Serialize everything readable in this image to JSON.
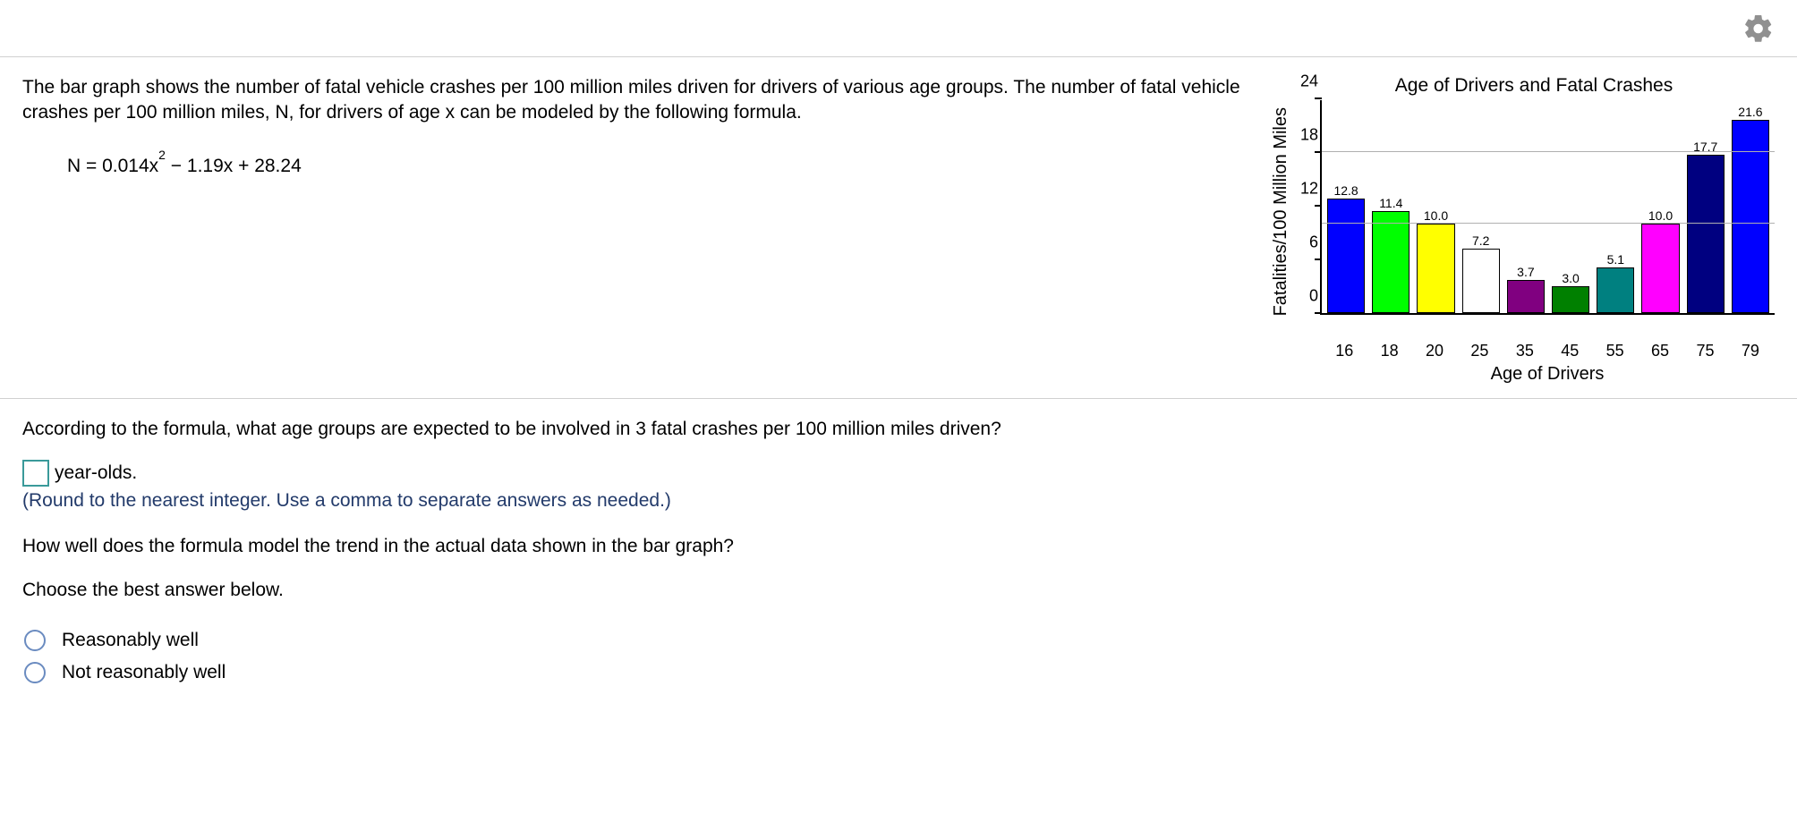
{
  "problem": {
    "intro": "The bar graph shows the number of fatal vehicle crashes per 100 million miles driven for drivers of various age groups. The number of fatal vehicle crashes per 100 million miles, N, for drivers of age x can be modeled by the following formula.",
    "formula_lhs": "N = 0.014x",
    "formula_exp": "2",
    "formula_rhs": " − 1.19x + 28.24"
  },
  "chart": {
    "type": "bar",
    "title": "Age of Drivers and Fatal Crashes",
    "y_label": "Fatalities/100 Million Miles",
    "x_label": "Age of Drivers",
    "ylim": [
      0,
      24
    ],
    "ytick_step": 6,
    "yticks": [
      {
        "v": 0,
        "label": "0"
      },
      {
        "v": 6,
        "label": "6"
      },
      {
        "v": 12,
        "label": "12"
      },
      {
        "v": 18,
        "label": "18"
      },
      {
        "v": 24,
        "label": "24"
      }
    ],
    "gridlines": [
      10.0,
      18.0
    ],
    "categories": [
      "16",
      "18",
      "20",
      "25",
      "35",
      "45",
      "55",
      "65",
      "75",
      "79"
    ],
    "values": [
      12.8,
      11.4,
      10.0,
      7.2,
      3.7,
      3.0,
      5.1,
      10.0,
      17.7,
      21.6
    ],
    "bar_colors": [
      "#0000ff",
      "#00ff00",
      "#ffff00",
      "#ffffff",
      "#800080",
      "#008000",
      "#008080",
      "#ff00ff",
      "#000080",
      "#0000ff"
    ],
    "bar_border": "#000000",
    "grid_color": "#b0b0b0",
    "label_fontsize": 14
  },
  "questions": {
    "q1": "According to the formula, what age groups are expected to be involved in 3 fatal crashes per 100 million miles driven?",
    "ans_suffix": "year-olds.",
    "hint": "(Round to the nearest integer. Use a comma to separate answers as needed.)",
    "q2": "How well does the formula model the trend in the actual data shown in the bar graph?",
    "choose": "Choose the best answer below.",
    "opt_a": "Reasonably well",
    "opt_b": "Not reasonably well"
  }
}
